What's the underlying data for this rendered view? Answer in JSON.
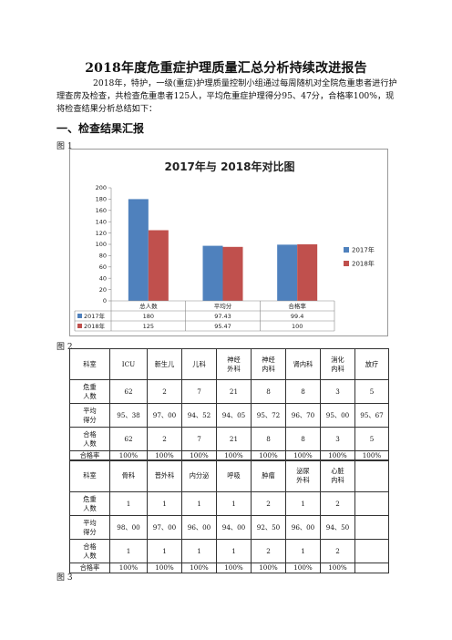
{
  "document": {
    "title": "2018年度危重症护理质量汇总分析持续改进报告",
    "paragraph": "2018年，特护，一级(重症)护理质量控制小组通过每周随机对全院危重患者进行护理查房及检查，共检查危重患者125人，平均危重症护理得分95、47分，合格率100%，现将检查结果分析总结如下：",
    "section_heading": "一、检查结果汇报",
    "figure_labels": [
      "图 1",
      "图 2",
      "图 3"
    ]
  },
  "chart_data": {
    "type": "bar",
    "title": "2017年与 2018年对比图",
    "categories": [
      "总人数",
      "平均分",
      "合格率"
    ],
    "series": [
      {
        "name": "2017年",
        "values": [
          180,
          97.43,
          99.4
        ],
        "value_labels": [
          "180",
          "97.43",
          "99.4"
        ],
        "color": "#4f81bd"
      },
      {
        "name": "2018年",
        "values": [
          125,
          95.47,
          100
        ],
        "value_labels": [
          "125",
          "95.47",
          "100"
        ],
        "color": "#c0504d"
      }
    ],
    "ylim": [
      0,
      200
    ],
    "yticks": [
      0,
      20,
      40,
      60,
      80,
      100,
      120,
      140,
      160,
      180,
      200
    ],
    "grid": false,
    "legend": "right"
  },
  "table1": {
    "header": [
      "科室",
      "ICU",
      "新生儿",
      "儿科",
      "神经外科",
      "神经内科",
      "肾内科",
      "消化内科",
      "放疗"
    ],
    "rows": [
      [
        "危重人数",
        "62",
        "2",
        "7",
        "21",
        "8",
        "8",
        "3",
        "5"
      ],
      [
        "平均得分",
        "95、38",
        "97、00",
        "94、52",
        "94、05",
        "95、72",
        "96、70",
        "95、00",
        "95、67"
      ],
      [
        "合格人数",
        "62",
        "2",
        "7",
        "21",
        "8",
        "8",
        "3",
        "5"
      ],
      [
        "合格率",
        "100%",
        "100%",
        "100%",
        "100%",
        "100%",
        "100%",
        "100%",
        "100%"
      ]
    ]
  },
  "table2": {
    "header": [
      "科室",
      "骨科",
      "普外科",
      "内分泌",
      "呼吸",
      "肿瘤",
      "泌尿外科",
      "心脏内科",
      ""
    ],
    "rows": [
      [
        "危重人数",
        "1",
        "1",
        "1",
        "1",
        "2",
        "1",
        "2",
        ""
      ],
      [
        "平均得分",
        "98、00",
        "97、00",
        "96、00",
        "94、00",
        "92、50",
        "96、00",
        "94、50",
        ""
      ],
      [
        "合格人数",
        "1",
        "1",
        "1",
        "1",
        "2",
        "1",
        "2",
        ""
      ],
      [
        "合格率",
        "100%",
        "100%",
        "100%",
        "100%",
        "100%",
        "100%",
        "100%",
        ""
      ]
    ]
  }
}
